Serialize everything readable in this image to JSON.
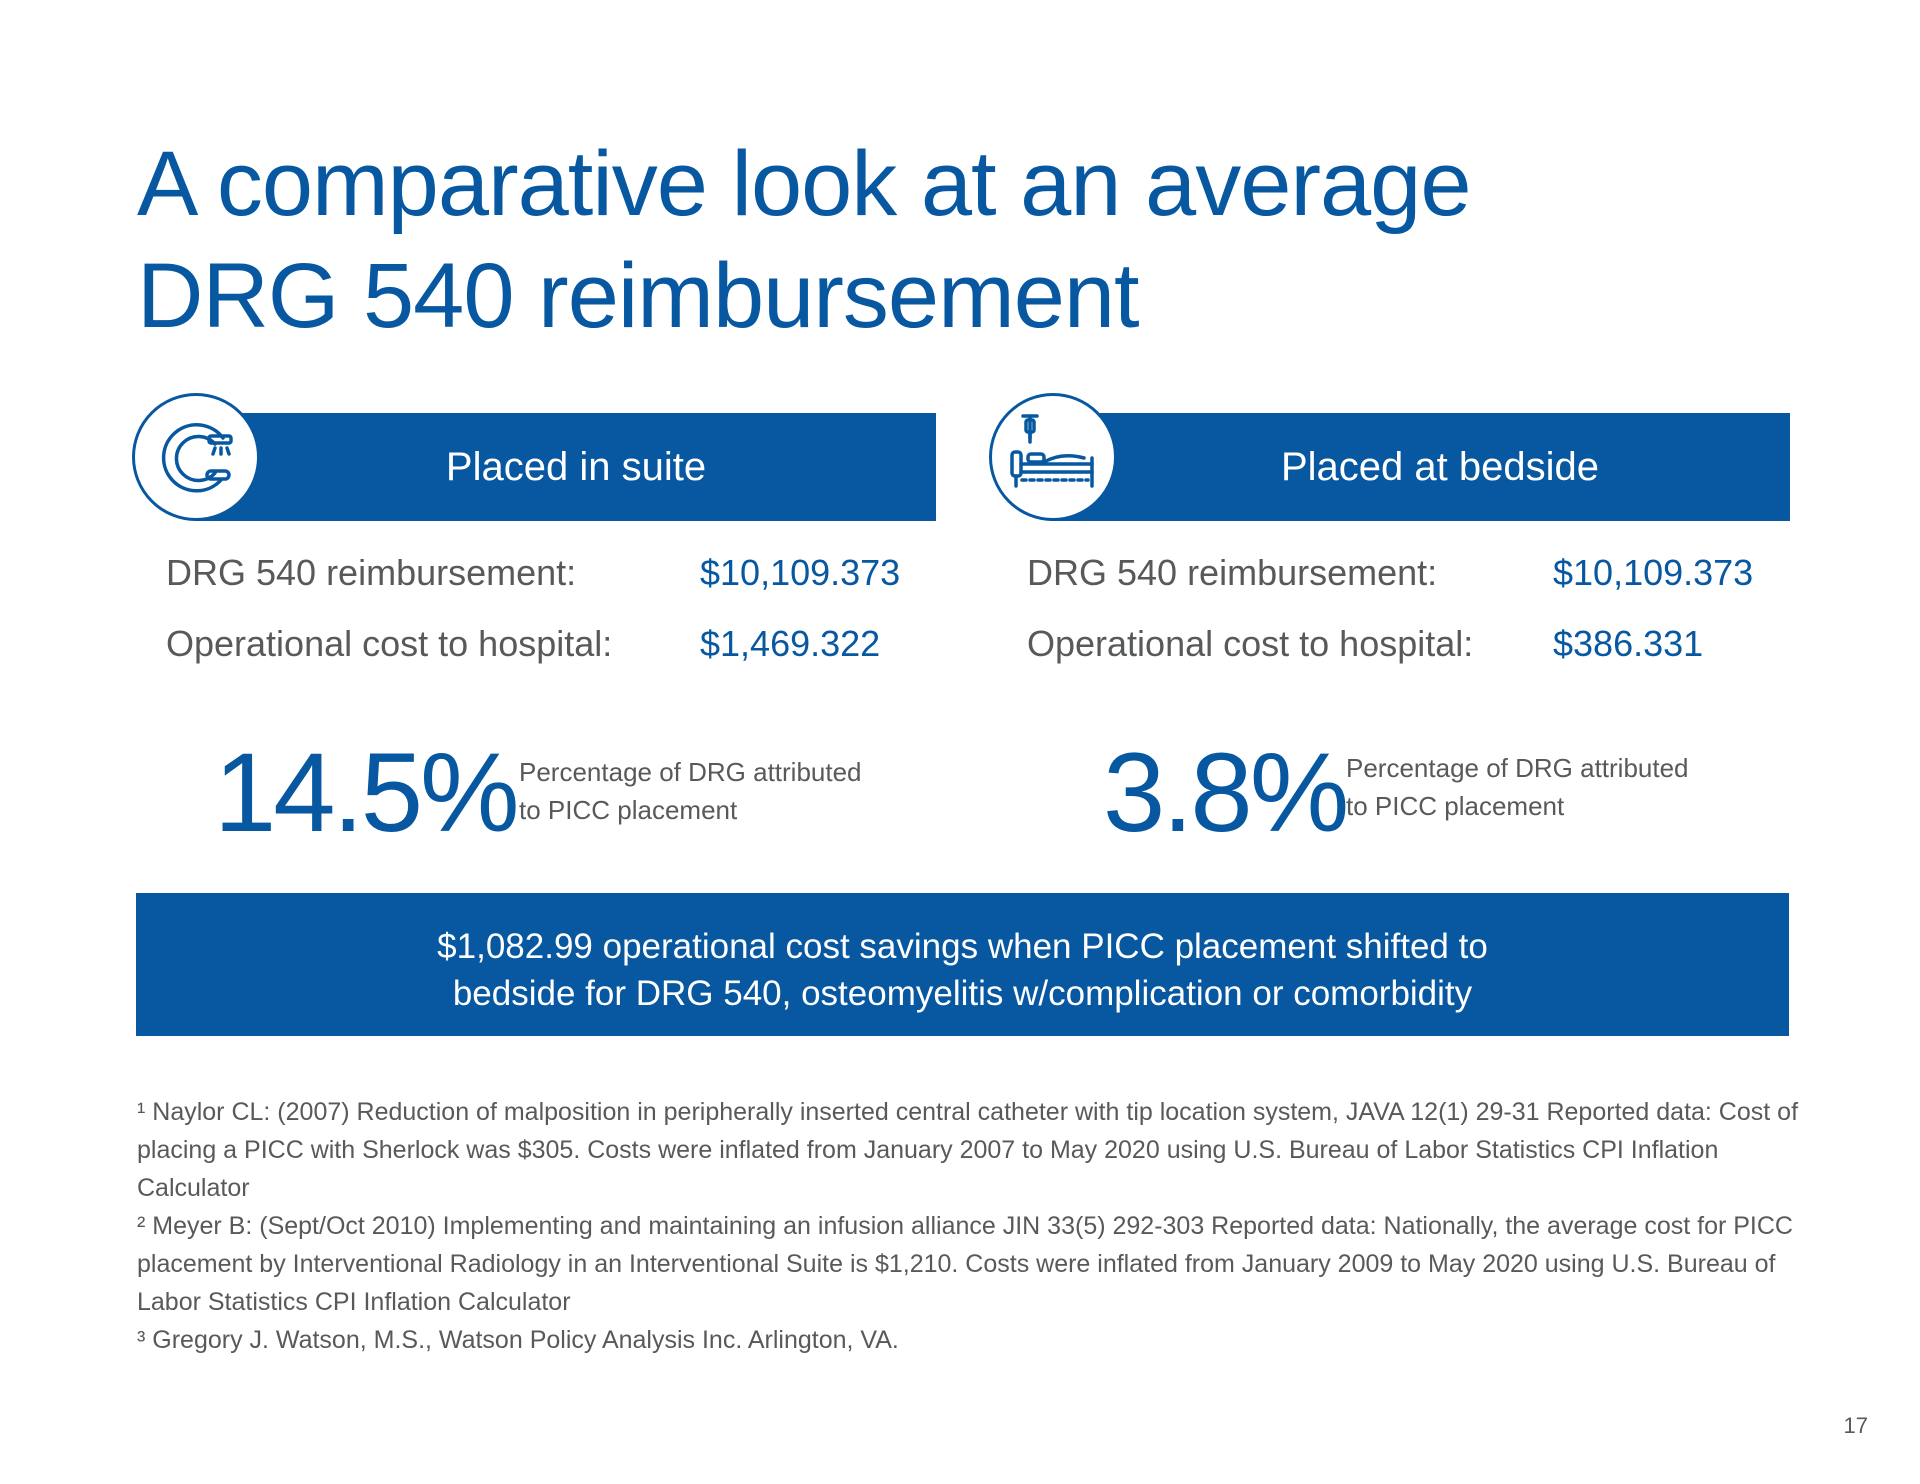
{
  "title": "A comparative look at an average DRG 540 reimbursement",
  "colors": {
    "brand_blue": "#0758a1",
    "text_gray": "#58595b"
  },
  "left_panel": {
    "icon": "c-arm-imaging-icon",
    "heading": "Placed in suite",
    "rows": [
      {
        "label": "DRG 540 reimbursement:",
        "value": "$10,109.373"
      },
      {
        "label": "Operational cost to hospital:",
        "value": "$1,469.322"
      }
    ],
    "percentage": "14.5%",
    "percentage_description": "Percentage of DRG attributed to PICC placement"
  },
  "right_panel": {
    "icon": "hospital-bed-iv-icon",
    "heading": "Placed at bedside",
    "rows": [
      {
        "label": "DRG 540 reimbursement:",
        "value": "$10,109.373"
      },
      {
        "label": "Operational cost to hospital:",
        "value": "$386.331"
      }
    ],
    "percentage": "3.8%",
    "percentage_description": "Percentage of DRG attributed to PICC placement"
  },
  "savings_callout": "$1,082.99 operational cost savings when PICC placement shifted to bedside for DRG 540, osteomyelitis w/complication or comorbidity",
  "footnotes": [
    "¹ Naylor CL: (2007)  Reduction of malposition in peripherally inserted central catheter with tip location system, JAVA 12(1) 29-31 Reported data: Cost of placing a PICC with Sherlock was $305. Costs were inflated from January 2007 to May 2020 using U.S. Bureau of Labor Statistics CPI Inflation Calculator",
    "² Meyer B: (Sept/Oct 2010) Implementing and maintaining an infusion alliance JIN 33(5) 292-303 Reported data: Nationally, the average cost for PICC placement by Interventional Radiology in an Interventional Suite is $1,210. Costs were inflated from January 2009 to May 2020 using U.S. Bureau of Labor Statistics CPI Inflation Calculator",
    "³ Gregory J. Watson, M.S., Watson Policy Analysis Inc. Arlington, VA."
  ],
  "page_number": "17"
}
